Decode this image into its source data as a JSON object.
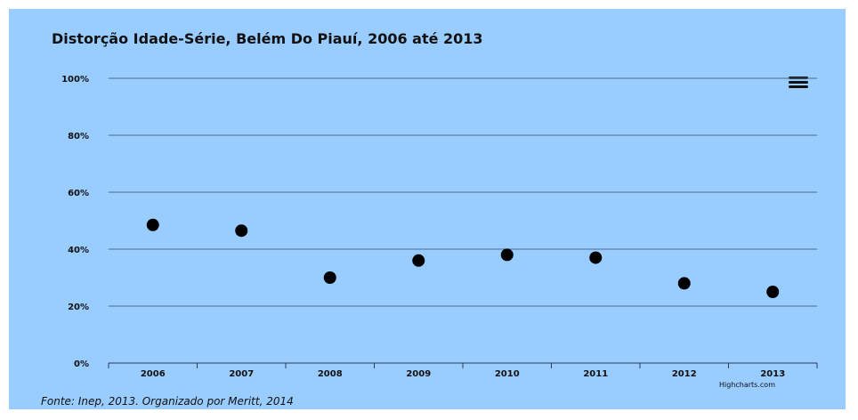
{
  "chart_data": {
    "type": "scatter",
    "title": "Distorção Idade-Série, Belém Do Piauí, 2006 até 2013",
    "categories": [
      "2006",
      "2007",
      "2008",
      "2009",
      "2010",
      "2011",
      "2012",
      "2013"
    ],
    "values": [
      48.5,
      46.5,
      30,
      36,
      38,
      37,
      28,
      25
    ],
    "ylim": [
      0,
      100
    ],
    "yticks": [
      "0%",
      "20%",
      "40%",
      "60%",
      "80%",
      "100%"
    ],
    "xlabel": "",
    "ylabel": "",
    "grid": true,
    "legend": "none",
    "point_color": "#000000",
    "background_color": "#99ccff"
  },
  "source": "Fonte: Inep, 2013. Organizado por Meritt, 2014",
  "credits": "Highcharts.com",
  "menu_icon": "hamburger-menu-icon"
}
